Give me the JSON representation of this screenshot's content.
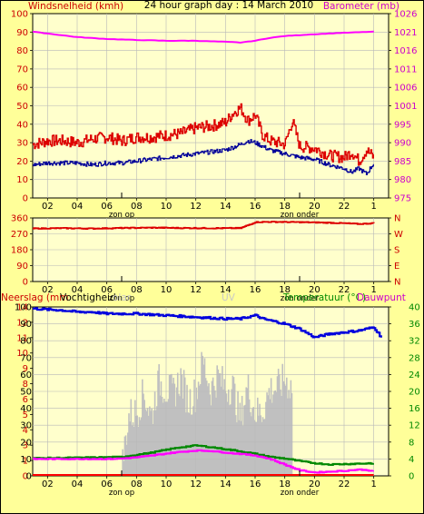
{
  "title": "24 hour graph day : 14 March 2010",
  "x_axis": {
    "tick_labels": [
      "02",
      "04",
      "06",
      "08",
      "10",
      "12",
      "14",
      "16",
      "18",
      "20",
      "22",
      "1"
    ],
    "sunrise_label": "zon op",
    "sunset_label": "zon onder"
  },
  "colors": {
    "background": "#ffff99",
    "plot": "#ffffcc",
    "grid": "#b8b8b8",
    "wind": "#dd0000",
    "wind_avg": "#000099",
    "barometer": "#ff00ff",
    "wind_dir": "#dd0000",
    "humidity": "#0000dd",
    "temperature": "#008800",
    "dewpoint": "#ff00ff",
    "rain": "#ff0000",
    "solar": "#c0c0c0",
    "uv": "#d0d0d0"
  },
  "chart_data": [
    {
      "type": "line",
      "name": "wind-barometer",
      "left_axis_label": "Windsnelheid (kmh)",
      "right_axis_label": "Barometer (mb)",
      "left_ticks": [
        "0",
        "10",
        "20",
        "30",
        "40",
        "50",
        "60",
        "70",
        "80",
        "90",
        "100"
      ],
      "right_ticks": [
        "975",
        "980",
        "985",
        "990",
        "995",
        "1001",
        "1006",
        "1011",
        "1016",
        "1021",
        "1026"
      ],
      "left_range": [
        0,
        100
      ],
      "right_range": [
        975,
        1026
      ],
      "x_range": [
        1,
        25
      ],
      "grid": true,
      "series": [
        {
          "key": "gust",
          "axis": "left",
          "x": [
            1,
            2,
            3,
            4,
            5,
            6,
            7,
            8,
            9,
            10,
            11,
            12,
            13,
            14,
            14.5,
            15,
            15.5,
            16,
            16.5,
            17,
            18,
            18.5,
            19,
            20,
            21,
            22,
            22.5,
            23,
            23.5,
            24
          ],
          "y": [
            29,
            31,
            31,
            30,
            32,
            33,
            31,
            33,
            33,
            34,
            35,
            38,
            39,
            41,
            46,
            49,
            42,
            45,
            34,
            31,
            29,
            42,
            28,
            27,
            23,
            22,
            25,
            20,
            26,
            22
          ]
        },
        {
          "key": "average",
          "axis": "left",
          "x": [
            1,
            2,
            3,
            4,
            5,
            6,
            7,
            8,
            9,
            10,
            11,
            12,
            13,
            14,
            15,
            15.5,
            16,
            16.5,
            17,
            18,
            19,
            20,
            21,
            22,
            22.5,
            23,
            23.5,
            24
          ],
          "y": [
            18,
            19,
            19,
            19,
            18,
            19,
            19,
            20,
            21,
            22,
            23,
            24,
            25,
            26,
            29,
            31,
            30,
            28,
            26,
            24,
            22,
            21,
            18,
            16,
            14,
            16,
            13,
            19
          ]
        },
        {
          "key": "barometer",
          "axis": "right",
          "x": [
            1,
            2,
            4,
            6,
            8,
            10,
            12,
            14,
            15,
            16,
            17,
            18,
            20,
            22,
            24
          ],
          "y": [
            1021,
            1020.5,
            1019.5,
            1019,
            1018.7,
            1018.5,
            1018.5,
            1018.2,
            1018,
            1018.5,
            1019.3,
            1019.8,
            1020.3,
            1020.7,
            1021
          ]
        }
      ]
    },
    {
      "type": "line",
      "name": "wind-direction",
      "left_ticks": [
        "0",
        "90",
        "180",
        "270",
        "360"
      ],
      "right_ticks": [
        "N",
        "E",
        "S",
        "W",
        "N"
      ],
      "left_range": [
        0,
        360
      ],
      "x_range": [
        1,
        25
      ],
      "grid": true,
      "series": [
        {
          "key": "direction",
          "axis": "left",
          "x": [
            1,
            3,
            5,
            7,
            9,
            11,
            13,
            15,
            16,
            17,
            19,
            21,
            23,
            24
          ],
          "y": [
            300,
            302,
            300,
            303,
            305,
            303,
            302,
            302,
            336,
            338,
            336,
            333,
            326,
            330
          ]
        }
      ]
    },
    {
      "type": "line",
      "name": "rain-humidity-temperature",
      "left_axis_label": "Neerslag (mm",
      "left_axis_label2": "Vochtigheid",
      "solar_label": "olar",
      "uv_label": "UV",
      "right_axis_label": "Temperatuur (°C)",
      "right_axis_label2": "Dauwpunt",
      "left_ticks": [
        "0",
        "1",
        "3",
        "4",
        "5",
        "6",
        "8",
        "9",
        "10",
        "11",
        "12",
        "14"
      ],
      "left_ticks2": [
        "0",
        "10",
        "20",
        "30",
        "40",
        "50",
        "60",
        "70",
        "80",
        "90",
        "100"
      ],
      "right_ticks": [
        "0",
        "4",
        "8",
        "12",
        "16",
        "20",
        "24",
        "28",
        "32",
        "36",
        "40"
      ],
      "left_range": [
        0,
        100
      ],
      "right_range": [
        0,
        40
      ],
      "x_range": [
        1,
        25
      ],
      "grid": true,
      "series": [
        {
          "key": "humidity",
          "axis": "left",
          "x": [
            1,
            3,
            4,
            5,
            6,
            8,
            10,
            12,
            14,
            15,
            16,
            16.5,
            17,
            18,
            19,
            20,
            21,
            22,
            23,
            24,
            24.5
          ],
          "y": [
            99,
            98,
            97,
            97,
            96,
            96,
            95,
            94,
            93,
            93,
            95,
            93,
            92,
            90,
            87,
            82,
            84,
            85,
            86,
            88,
            82
          ]
        },
        {
          "key": "temperature",
          "axis": "right",
          "x": [
            1,
            2,
            4,
            6,
            7,
            8,
            9,
            10,
            11,
            12,
            13,
            14,
            15,
            16,
            17,
            18,
            19,
            20,
            21,
            22,
            23,
            24
          ],
          "y": [
            4.2,
            4.2,
            4.3,
            4.4,
            4.5,
            5,
            5.5,
            6.2,
            6.8,
            7.2,
            6.8,
            6.3,
            5.8,
            5.2,
            4.5,
            4.1,
            3.5,
            3.0,
            2.7,
            2.8,
            2.9,
            3.0
          ]
        },
        {
          "key": "dewpoint",
          "axis": "right",
          "x": [
            1,
            2,
            4,
            6,
            7,
            8,
            9,
            10,
            11,
            12,
            13,
            14,
            15,
            16,
            17,
            18,
            19,
            20,
            21,
            22,
            23,
            24
          ],
          "y": [
            4.0,
            4.0,
            4.0,
            4.0,
            4.1,
            4.4,
            4.8,
            5.3,
            5.7,
            6.0,
            5.9,
            5.5,
            5.2,
            4.8,
            4.0,
            2.6,
            1.3,
            0.8,
            1.0,
            1.2,
            1.5,
            1.2
          ]
        },
        {
          "key": "rain",
          "axis": "left",
          "x": [
            1,
            24
          ],
          "y": [
            0,
            0
          ]
        }
      ],
      "solar": {
        "x": [
          7,
          7.5,
          8,
          8.5,
          9,
          9.5,
          10,
          10.5,
          11,
          11.5,
          12,
          12.5,
          13,
          13.5,
          14,
          14.5,
          15,
          15.5,
          16,
          16.5,
          17,
          17.5,
          18,
          18.5
        ],
        "y": [
          4,
          36,
          37,
          49,
          35,
          56,
          51,
          49,
          58,
          44,
          49,
          68,
          51,
          59,
          52,
          53,
          33,
          53,
          37,
          38,
          51,
          52,
          57,
          52
        ]
      }
    }
  ]
}
